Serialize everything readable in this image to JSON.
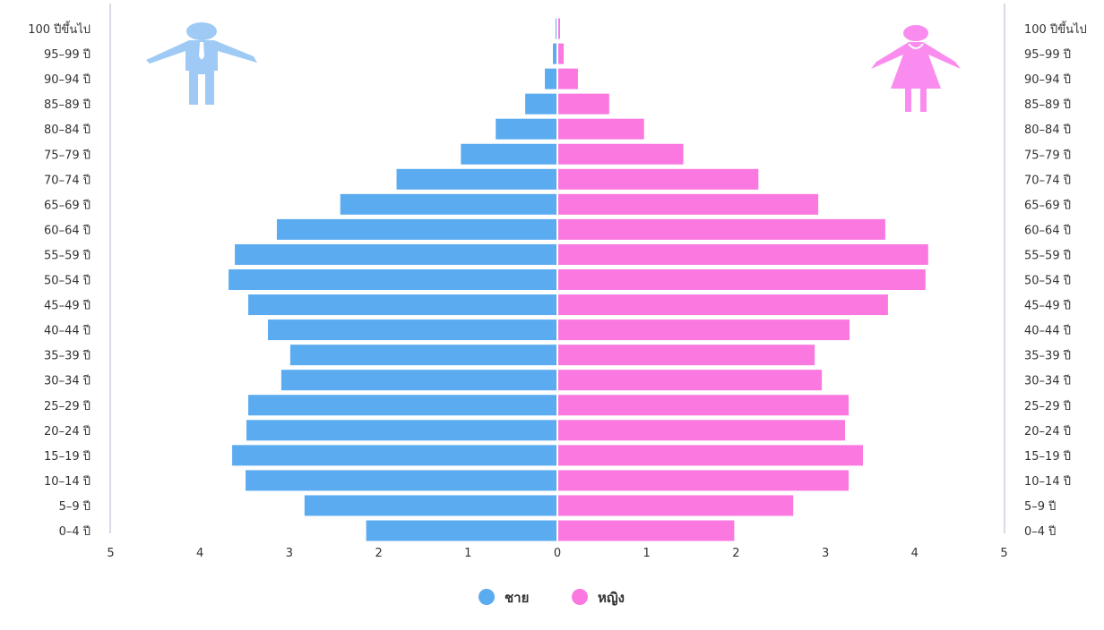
{
  "colors": {
    "male": "#5aabf0",
    "female": "#fa78e0",
    "male_icon": "#9fcaf5",
    "female_icon": "#fa8cf0",
    "axis": "#c8cfdc"
  },
  "icons": {
    "male": "man-icon",
    "female": "woman-icon"
  },
  "chart_data": {
    "type": "bar",
    "orientation": "horizontal",
    "title": "",
    "xlabel": "",
    "ylabel": "",
    "xlim": [
      -5,
      5
    ],
    "x_ticks": [
      5,
      4,
      3,
      2,
      1,
      0,
      1,
      2,
      3,
      4,
      5
    ],
    "grid": false,
    "legend_position": "bottom-center",
    "categories": [
      "100 ปีขึ้นไป",
      "95–99 ปี",
      "90–94 ปี",
      "85–89 ปี",
      "80–84 ปี",
      "75–79 ปี",
      "70–74 ปี",
      "65–69 ปี",
      "60–64 ปี",
      "55–59 ปี",
      "50–54 ปี",
      "45–49 ปี",
      "40–44 ปี",
      "35–39 ปี",
      "30–34 ปี",
      "25–29 ปี",
      "20–24 ปี",
      "15–19 ปี",
      "10–14 ปี",
      "5–9 ปี",
      "0–4 ปี"
    ],
    "series": [
      {
        "name": "ชาย",
        "side": "left",
        "values": [
          0.01,
          0.04,
          0.13,
          0.35,
          0.68,
          1.07,
          1.79,
          2.42,
          3.13,
          3.6,
          3.67,
          3.45,
          3.23,
          2.98,
          3.08,
          3.45,
          3.47,
          3.63,
          3.48,
          2.82,
          2.13
        ]
      },
      {
        "name": "หญิง",
        "side": "right",
        "values": [
          0.02,
          0.06,
          0.22,
          0.57,
          0.96,
          1.4,
          2.24,
          2.91,
          3.66,
          4.14,
          4.11,
          3.69,
          3.26,
          2.87,
          2.95,
          3.25,
          3.21,
          3.41,
          3.25,
          2.63,
          1.97
        ]
      }
    ]
  }
}
